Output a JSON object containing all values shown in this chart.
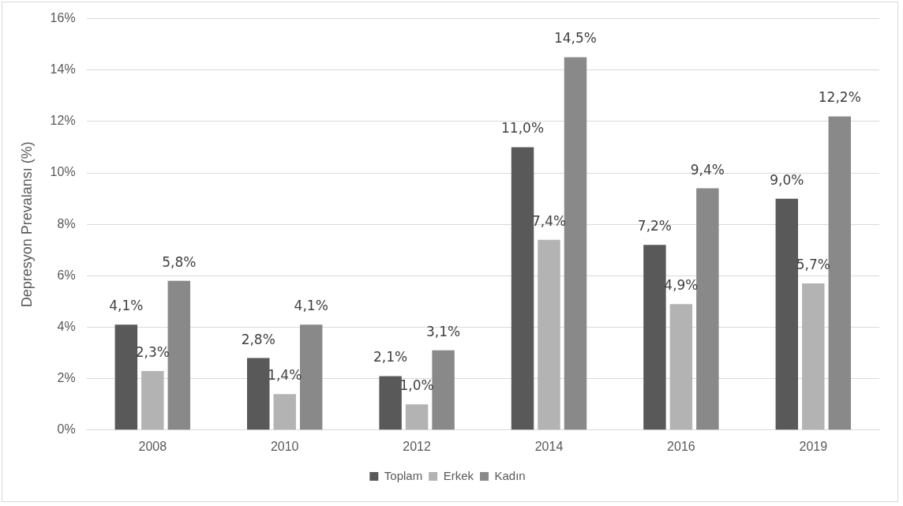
{
  "chart_data": {
    "type": "bar",
    "ylabel": "Depresyon Prevalansı (%)",
    "categories": [
      "2008",
      "2010",
      "2012",
      "2014",
      "2016",
      "2019"
    ],
    "series": [
      {
        "name": "Toplam",
        "color": "#595959",
        "values": [
          4.1,
          2.8,
          2.1,
          11.0,
          7.2,
          9.0
        ],
        "value_labels": [
          "4,1%",
          "2,8%",
          "2,1%",
          "11,0%",
          "7,2%",
          "9,0%"
        ]
      },
      {
        "name": "Erkek",
        "color": "#b3b3b3",
        "values": [
          2.3,
          1.4,
          1.0,
          7.4,
          4.9,
          5.7
        ],
        "value_labels": [
          "2,3%",
          "1,4%",
          "1,0%",
          "7,4%",
          "4,9%",
          "5,7%"
        ]
      },
      {
        "name": "Kadın",
        "color": "#898989",
        "values": [
          5.8,
          4.1,
          3.1,
          14.5,
          9.4,
          12.2
        ],
        "value_labels": [
          "5,8%",
          "4,1%",
          "3,1%",
          "14,5%",
          "9,4%",
          "12,2%"
        ]
      }
    ],
    "ylim": [
      0,
      16
    ],
    "yticks": [
      {
        "value": 0,
        "label": "0%"
      },
      {
        "value": 2,
        "label": "2%"
      },
      {
        "value": 4,
        "label": "4%"
      },
      {
        "value": 6,
        "label": "6%"
      },
      {
        "value": 8,
        "label": "8%"
      },
      {
        "value": 10,
        "label": "10%"
      },
      {
        "value": 12,
        "label": "12%"
      },
      {
        "value": 14,
        "label": "14%"
      },
      {
        "value": 16,
        "label": "16%"
      }
    ],
    "grid": "y",
    "legend": "bottom"
  }
}
